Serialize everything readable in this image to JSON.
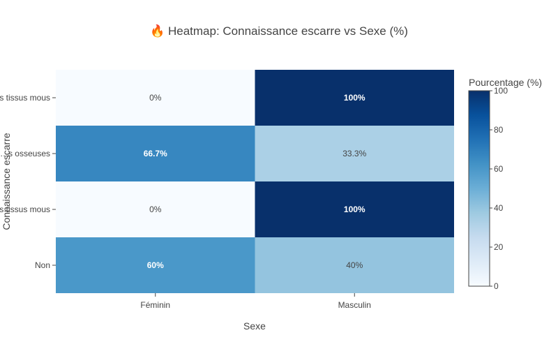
{
  "chart_data": {
    "type": "heatmap",
    "title": "🔥 Heatmap: Connaissance escarre vs Sexe (%)",
    "xlabel": "Sexe",
    "ylabel": "Connaissance escarre",
    "x_categories": [
      "Féminin",
      "Masculin"
    ],
    "y_categories": [
      "Non",
      "…is tissus mous",
      "…s osseuses",
      "…s tissus mous"
    ],
    "z": [
      [
        60,
        40
      ],
      [
        0,
        100
      ],
      [
        66.7,
        33.3
      ],
      [
        0,
        100
      ]
    ],
    "cell_labels": [
      [
        "60%",
        "40%"
      ],
      [
        "0%",
        "100%"
      ],
      [
        "66.7%",
        "33.3%"
      ],
      [
        "0%",
        "100%"
      ]
    ],
    "zlim": [
      0,
      100
    ],
    "colorscale": "Blues",
    "colorbar": {
      "title": "Pourcentage (%)",
      "ticks": [
        0,
        20,
        40,
        60,
        80,
        100
      ]
    },
    "colors": {
      "low": "#f7fbff",
      "high": "#08306b"
    }
  }
}
